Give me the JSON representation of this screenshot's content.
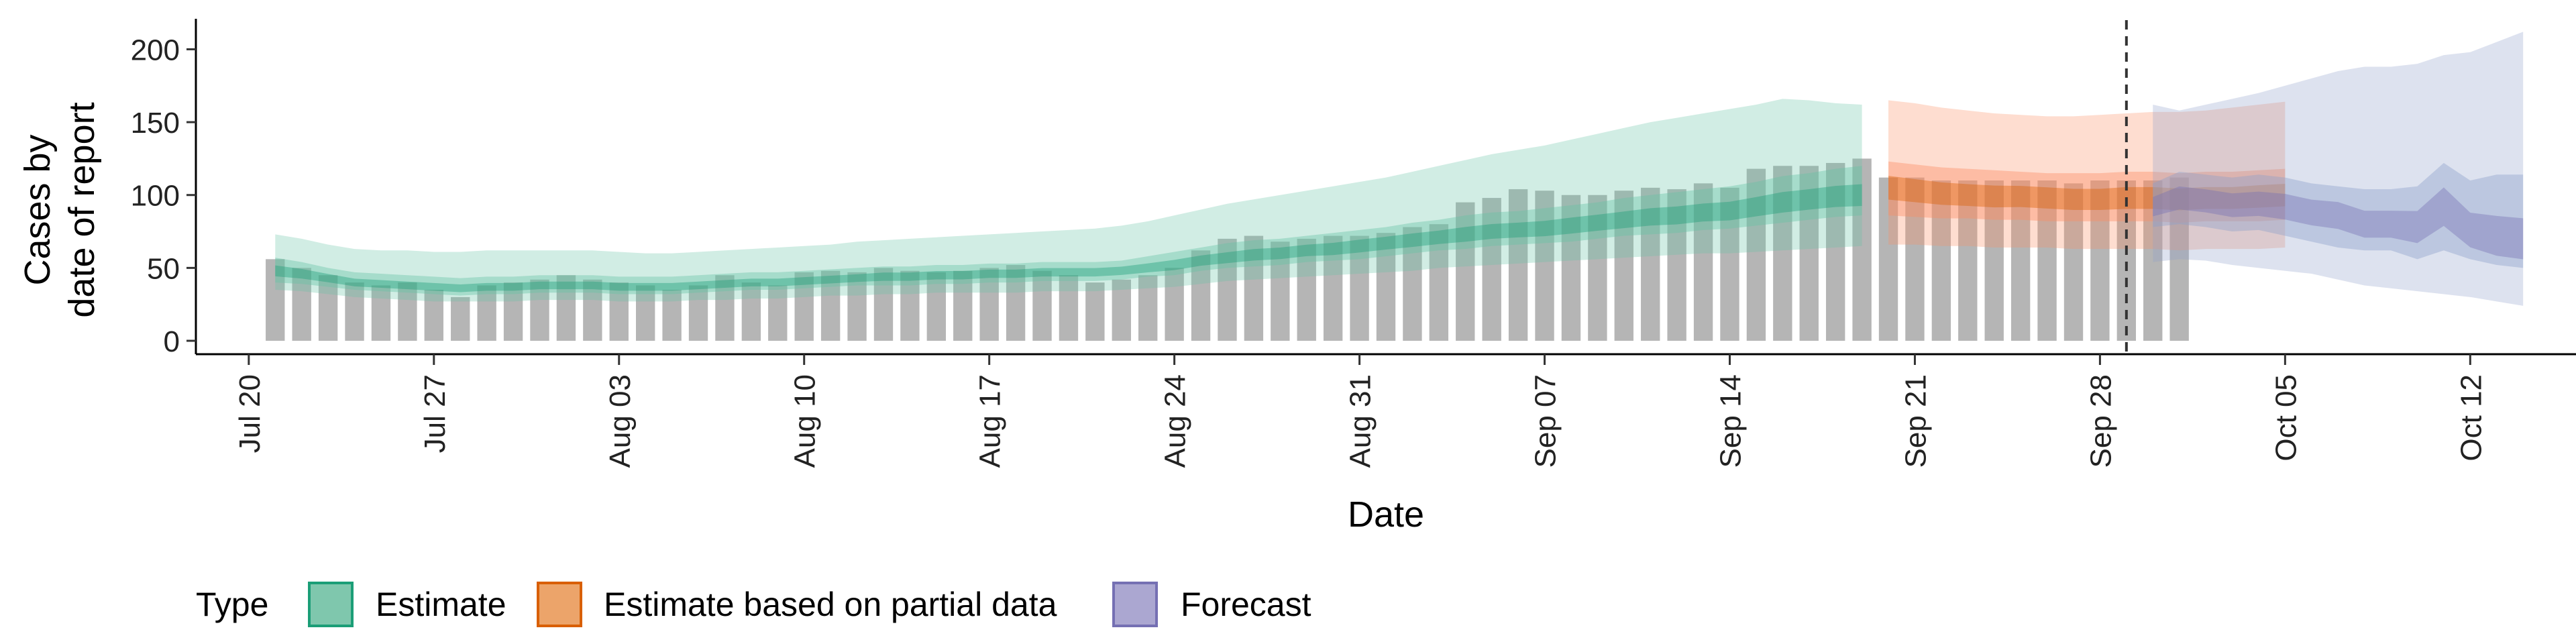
{
  "chart_data": {
    "type": "bar",
    "xlabel": "Date",
    "ylabel_lines": [
      "Cases by",
      "date of report"
    ],
    "ylim": [
      0,
      220
    ],
    "y_ticks": [
      0,
      50,
      100,
      150,
      200
    ],
    "x_range": [
      "2020-07-18",
      "2020-10-16"
    ],
    "x_ticks": [
      {
        "date": "2020-07-20",
        "label": "Jul 20"
      },
      {
        "date": "2020-07-27",
        "label": "Jul 27"
      },
      {
        "date": "2020-08-03",
        "label": "Aug 03"
      },
      {
        "date": "2020-08-10",
        "label": "Aug 10"
      },
      {
        "date": "2020-08-17",
        "label": "Aug 17"
      },
      {
        "date": "2020-08-24",
        "label": "Aug 24"
      },
      {
        "date": "2020-08-31",
        "label": "Aug 31"
      },
      {
        "date": "2020-09-07",
        "label": "Sep 07"
      },
      {
        "date": "2020-09-14",
        "label": "Sep 14"
      },
      {
        "date": "2020-09-21",
        "label": "Sep 21"
      },
      {
        "date": "2020-09-28",
        "label": "Sep 28"
      },
      {
        "date": "2020-10-05",
        "label": "Oct 05"
      },
      {
        "date": "2020-10-12",
        "label": "Oct 12"
      }
    ],
    "forecast_start": "2020-09-29",
    "observed": {
      "start_date": "2020-07-21",
      "values": [
        56,
        50,
        45,
        40,
        38,
        40,
        35,
        30,
        38,
        40,
        42,
        45,
        42,
        40,
        38,
        35,
        38,
        45,
        40,
        38,
        47,
        48,
        47,
        50,
        48,
        47,
        48,
        50,
        52,
        48,
        45,
        40,
        42,
        45,
        50,
        62,
        70,
        72,
        68,
        70,
        72,
        72,
        74,
        78,
        80,
        95,
        98,
        104,
        103,
        100,
        100,
        103,
        105,
        104,
        108,
        105,
        118,
        120,
        120,
        122,
        125,
        112,
        112,
        110,
        110,
        110,
        110,
        110,
        108,
        110,
        110,
        110,
        112
      ]
    },
    "series": [
      {
        "name": "Estimate",
        "color": "#1B9E77",
        "fill": "#66C2A5",
        "start_date": "2020-07-21",
        "median": [
          48,
          46,
          43,
          40,
          39,
          38,
          37,
          36,
          37,
          37,
          38,
          38,
          38,
          37,
          37,
          37,
          38,
          39,
          40,
          40,
          41,
          42,
          43,
          44,
          44,
          45,
          45,
          46,
          46,
          47,
          47,
          47,
          48,
          50,
          52,
          55,
          57,
          59,
          60,
          62,
          63,
          65,
          67,
          69,
          71,
          73,
          75,
          76,
          77,
          79,
          81,
          83,
          85,
          86,
          88,
          89,
          92,
          95,
          97,
          99,
          100
        ],
        "inner": [
          [
            40,
            57
          ],
          [
            39,
            54
          ],
          [
            37,
            50
          ],
          [
            35,
            47
          ],
          [
            34,
            46
          ],
          [
            33,
            45
          ],
          [
            32,
            44
          ],
          [
            31,
            43
          ],
          [
            32,
            44
          ],
          [
            32,
            44
          ],
          [
            33,
            45
          ],
          [
            33,
            45
          ],
          [
            33,
            45
          ],
          [
            32,
            44
          ],
          [
            32,
            44
          ],
          [
            32,
            44
          ],
          [
            33,
            45
          ],
          [
            34,
            46
          ],
          [
            35,
            47
          ],
          [
            35,
            47
          ],
          [
            36,
            48
          ],
          [
            37,
            49
          ],
          [
            38,
            50
          ],
          [
            38,
            51
          ],
          [
            38,
            51
          ],
          [
            39,
            52
          ],
          [
            39,
            52
          ],
          [
            40,
            53
          ],
          [
            40,
            53
          ],
          [
            41,
            54
          ],
          [
            41,
            54
          ],
          [
            41,
            54
          ],
          [
            42,
            55
          ],
          [
            44,
            58
          ],
          [
            45,
            61
          ],
          [
            48,
            64
          ],
          [
            50,
            67
          ],
          [
            51,
            69
          ],
          [
            52,
            70
          ],
          [
            54,
            72
          ],
          [
            55,
            74
          ],
          [
            56,
            76
          ],
          [
            58,
            78
          ],
          [
            60,
            81
          ],
          [
            62,
            83
          ],
          [
            63,
            86
          ],
          [
            65,
            88
          ],
          [
            66,
            89
          ],
          [
            67,
            91
          ],
          [
            68,
            93
          ],
          [
            70,
            95
          ],
          [
            72,
            98
          ],
          [
            73,
            100
          ],
          [
            74,
            102
          ],
          [
            76,
            104
          ],
          [
            77,
            106
          ],
          [
            79,
            109
          ],
          [
            81,
            113
          ],
          [
            83,
            115
          ],
          [
            85,
            118
          ],
          [
            86,
            120
          ]
        ],
        "outer": [
          [
            35,
            73
          ],
          [
            34,
            70
          ],
          [
            32,
            66
          ],
          [
            30,
            63
          ],
          [
            29,
            62
          ],
          [
            28,
            62
          ],
          [
            27,
            61
          ],
          [
            27,
            61
          ],
          [
            27,
            62
          ],
          [
            27,
            62
          ],
          [
            28,
            62
          ],
          [
            28,
            62
          ],
          [
            28,
            62
          ],
          [
            27,
            61
          ],
          [
            27,
            60
          ],
          [
            27,
            60
          ],
          [
            28,
            61
          ],
          [
            28,
            62
          ],
          [
            29,
            63
          ],
          [
            29,
            64
          ],
          [
            30,
            65
          ],
          [
            31,
            66
          ],
          [
            31,
            68
          ],
          [
            32,
            69
          ],
          [
            32,
            70
          ],
          [
            33,
            71
          ],
          [
            33,
            72
          ],
          [
            33,
            73
          ],
          [
            33,
            74
          ],
          [
            34,
            75
          ],
          [
            34,
            76
          ],
          [
            34,
            77
          ],
          [
            35,
            79
          ],
          [
            36,
            82
          ],
          [
            37,
            86
          ],
          [
            39,
            90
          ],
          [
            41,
            94
          ],
          [
            42,
            97
          ],
          [
            43,
            100
          ],
          [
            44,
            103
          ],
          [
            45,
            106
          ],
          [
            46,
            109
          ],
          [
            47,
            112
          ],
          [
            48,
            116
          ],
          [
            50,
            120
          ],
          [
            51,
            124
          ],
          [
            52,
            128
          ],
          [
            53,
            131
          ],
          [
            54,
            134
          ],
          [
            55,
            138
          ],
          [
            56,
            142
          ],
          [
            57,
            146
          ],
          [
            58,
            150
          ],
          [
            59,
            153
          ],
          [
            60,
            156
          ],
          [
            60,
            159
          ],
          [
            61,
            162
          ],
          [
            62,
            166
          ],
          [
            63,
            165
          ],
          [
            64,
            163
          ],
          [
            65,
            162
          ]
        ]
      },
      {
        "name": "Estimate based on partial data",
        "color": "#D95F02",
        "fill": "#FC8D62",
        "start_date": "2020-09-20",
        "median": [
          105,
          103,
          101,
          100,
          99,
          99,
          98,
          97,
          97,
          98,
          98,
          97,
          98,
          98,
          99,
          100
        ],
        "inner": [
          [
            86,
            123
          ],
          [
            85,
            121
          ],
          [
            84,
            119
          ],
          [
            84,
            118
          ],
          [
            83,
            117
          ],
          [
            83,
            116
          ],
          [
            82,
            115
          ],
          [
            82,
            115
          ],
          [
            82,
            115
          ],
          [
            82,
            116
          ],
          [
            82,
            116
          ],
          [
            81,
            115
          ],
          [
            82,
            116
          ],
          [
            82,
            116
          ],
          [
            82,
            117
          ],
          [
            83,
            118
          ]
        ],
        "outer": [
          [
            66,
            165
          ],
          [
            66,
            163
          ],
          [
            65,
            160
          ],
          [
            65,
            158
          ],
          [
            64,
            156
          ],
          [
            64,
            155
          ],
          [
            64,
            154
          ],
          [
            63,
            154
          ],
          [
            63,
            155
          ],
          [
            63,
            156
          ],
          [
            63,
            157
          ],
          [
            62,
            157
          ],
          [
            63,
            158
          ],
          [
            63,
            160
          ],
          [
            63,
            162
          ],
          [
            64,
            164
          ]
        ]
      },
      {
        "name": "Forecast",
        "color": "#7570B3",
        "fill": "#8DA0CB",
        "start_date": "2020-09-30",
        "median": [
          92,
          98,
          96,
          93,
          94,
          92,
          88,
          86,
          80,
          80,
          78,
          92,
          76,
          72,
          70
        ],
        "inner": [
          [
            78,
            108
          ],
          [
            80,
            116
          ],
          [
            78,
            114
          ],
          [
            75,
            112
          ],
          [
            76,
            114
          ],
          [
            72,
            112
          ],
          [
            68,
            108
          ],
          [
            64,
            106
          ],
          [
            62,
            104
          ],
          [
            62,
            104
          ],
          [
            56,
            106
          ],
          [
            62,
            122
          ],
          [
            56,
            110
          ],
          [
            52,
            114
          ],
          [
            50,
            114
          ]
        ],
        "outer": [
          [
            54,
            162
          ],
          [
            56,
            158
          ],
          [
            55,
            162
          ],
          [
            52,
            166
          ],
          [
            50,
            170
          ],
          [
            48,
            175
          ],
          [
            46,
            180
          ],
          [
            42,
            185
          ],
          [
            38,
            188
          ],
          [
            36,
            188
          ],
          [
            34,
            190
          ],
          [
            32,
            196
          ],
          [
            30,
            198
          ],
          [
            27,
            205
          ],
          [
            24,
            212
          ]
        ]
      }
    ],
    "legend": {
      "title": "Type",
      "position": "bottom-left",
      "items": [
        "Estimate",
        "Estimate based on partial data",
        "Forecast"
      ]
    }
  }
}
